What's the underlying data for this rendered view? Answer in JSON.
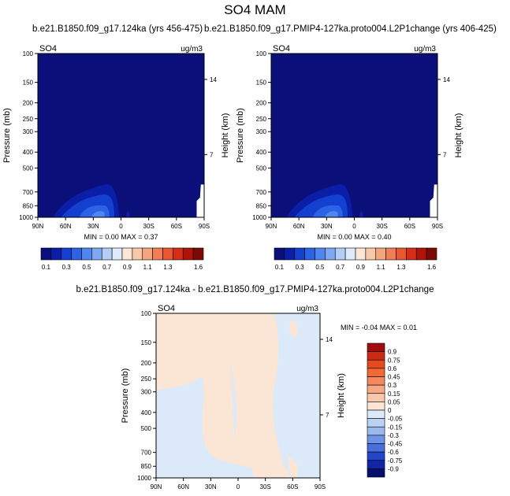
{
  "page": {
    "title": "SO4 MAM"
  },
  "chart_data": [
    {
      "type": "heatmap",
      "title": "b.e21.B1850.f09_g17.124ka (yrs 456-475)",
      "variable": "SO4",
      "units": "ug/m3",
      "ylabel": "Pressure (mb)",
      "right_label": "Height (km)",
      "x_ticks": [
        "90N",
        "60N",
        "30N",
        "0",
        "30S",
        "60S",
        "90S"
      ],
      "y_ticks": [
        "100",
        "150",
        "200",
        "250",
        "300",
        "400",
        "500",
        "700",
        "850",
        "1000"
      ],
      "right_ticks": [
        "14",
        "7"
      ],
      "stats": "MIN =   0.00  MAX =   0.37",
      "min": 0.0,
      "max": 0.37,
      "colorbar": {
        "levels": [
          "0.1",
          "0.2",
          "0.3",
          "0.4",
          "0.5",
          "0.6",
          "0.7",
          "0.8",
          "0.9",
          "1.0",
          "1.1",
          "1.2",
          "1.3",
          "1.4",
          "1.5",
          "1.6"
        ],
        "tick_labels": [
          "0.1",
          "0.3",
          "0.5",
          "0.7",
          "0.9",
          "1.1",
          "1.3",
          "1.6"
        ],
        "colors": [
          "#0a0f7a",
          "#0b1ea8",
          "#1440d0",
          "#2b62e6",
          "#4f86f0",
          "#7fa8f2",
          "#b3cdf5",
          "#deebfa",
          "#fbe6d8",
          "#f8c9a9",
          "#f5a57e",
          "#f07e57",
          "#e85632",
          "#d42d18",
          "#b11309",
          "#7c0a04"
        ]
      }
    },
    {
      "type": "heatmap",
      "title": "b.e21.B1850.f09_g17.PMIP4-127ka.proto004.L2P1change (yrs 406-425)",
      "variable": "SO4",
      "units": "ug/m3",
      "ylabel": "Pressure (mb)",
      "right_label": "Height (km)",
      "x_ticks": [
        "90N",
        "60N",
        "30N",
        "0",
        "30S",
        "60S",
        "90S"
      ],
      "y_ticks": [
        "100",
        "150",
        "200",
        "250",
        "300",
        "400",
        "500",
        "700",
        "850",
        "1000"
      ],
      "right_ticks": [
        "14",
        "7"
      ],
      "stats": "MIN =   0.00  MAX =   0.40",
      "min": 0.0,
      "max": 0.4,
      "colorbar": {
        "levels": [
          "0.1",
          "0.2",
          "0.3",
          "0.4",
          "0.5",
          "0.6",
          "0.7",
          "0.8",
          "0.9",
          "1.0",
          "1.1",
          "1.2",
          "1.3",
          "1.4",
          "1.5",
          "1.6"
        ],
        "tick_labels": [
          "0.1",
          "0.3",
          "0.5",
          "0.7",
          "0.9",
          "1.1",
          "1.3",
          "1.6"
        ],
        "colors": [
          "#0a0f7a",
          "#0b1ea8",
          "#1440d0",
          "#2b62e6",
          "#4f86f0",
          "#7fa8f2",
          "#b3cdf5",
          "#deebfa",
          "#fbe6d8",
          "#f8c9a9",
          "#f5a57e",
          "#f07e57",
          "#e85632",
          "#d42d18",
          "#b11309",
          "#7c0a04"
        ]
      }
    },
    {
      "type": "heatmap",
      "title": "b.e21.B1850.f09_g17.124ka - b.e21.B1850.f09_g17.PMIP4-127ka.proto004.L2P1change",
      "variable": "SO4",
      "units": "ug/m3",
      "ylabel": "Pressure (mb)",
      "right_label": "Height (km)",
      "x_ticks": [
        "90N",
        "60N",
        "30N",
        "0",
        "30S",
        "60S",
        "90S"
      ],
      "y_ticks": [
        "100",
        "150",
        "200",
        "250",
        "300",
        "400",
        "500",
        "700",
        "850",
        "1000"
      ],
      "right_ticks": [
        "14",
        "7"
      ],
      "stats": "MIN = -0.04  MAX =   0.01",
      "min": -0.04,
      "max": 0.01,
      "colorbar": {
        "tick_labels": [
          "0.9",
          "0.75",
          "0.6",
          "0.45",
          "0.3",
          "0.15",
          "0.05",
          "0",
          "-0.05",
          "-0.15",
          "-0.3",
          "-0.45",
          "-0.6",
          "-0.75",
          "-0.9"
        ],
        "colors": [
          "#a00d0d",
          "#cc2a14",
          "#e54a1c",
          "#f06a38",
          "#f4895e",
          "#f6a784",
          "#f8c7ae",
          "#fbe6d6",
          "#dbe9f8",
          "#bcd2f3",
          "#9bb9ee",
          "#6f93e6",
          "#4a6fdc",
          "#2446c8",
          "#1026a6",
          "#050f6e"
        ]
      }
    }
  ]
}
